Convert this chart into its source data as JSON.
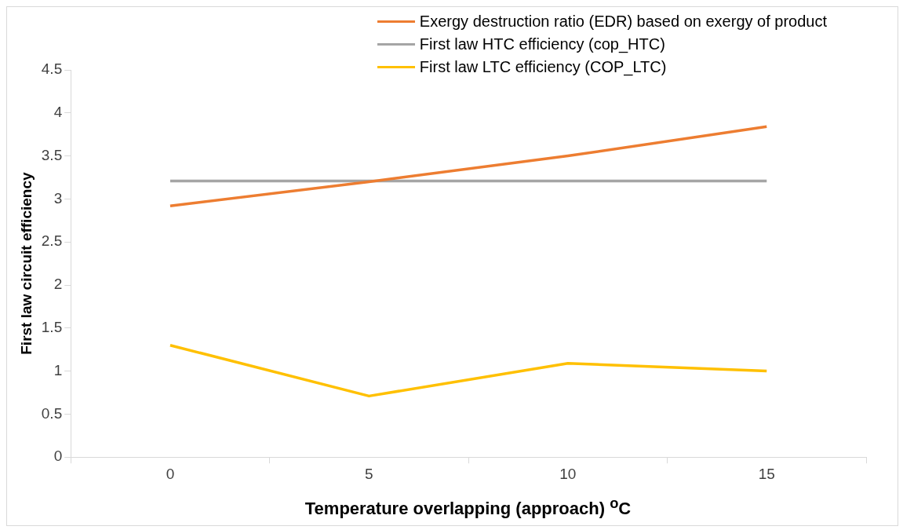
{
  "chart_data": {
    "type": "line",
    "xlabel": "Temperature overlapping (approach) $^{o}$C",
    "ylabel": "First law circuit efficiency",
    "categories": [
      "0",
      "5",
      "10",
      "15"
    ],
    "series": [
      {
        "name": "Exergy destruction ratio (EDR) based on exergy of product",
        "color": "#ed7d31",
        "values": [
          2.92,
          3.2,
          3.5,
          3.84
        ]
      },
      {
        "name": "First law HTC efficiency (cop_HTC)",
        "color": "#a5a5a5",
        "values": [
          3.21,
          3.21,
          3.21,
          3.21
        ]
      },
      {
        "name": "First law LTC efficiency (COP_LTC)",
        "color": "#ffc000",
        "values": [
          1.3,
          0.71,
          1.09,
          1.0
        ]
      }
    ],
    "ylim": [
      0,
      4.5
    ],
    "yticks": [
      0,
      0.5,
      1,
      1.5,
      2,
      2.5,
      3,
      3.5,
      4,
      4.5
    ],
    "legend": "top right",
    "marker": "none",
    "line_style": "solid"
  }
}
